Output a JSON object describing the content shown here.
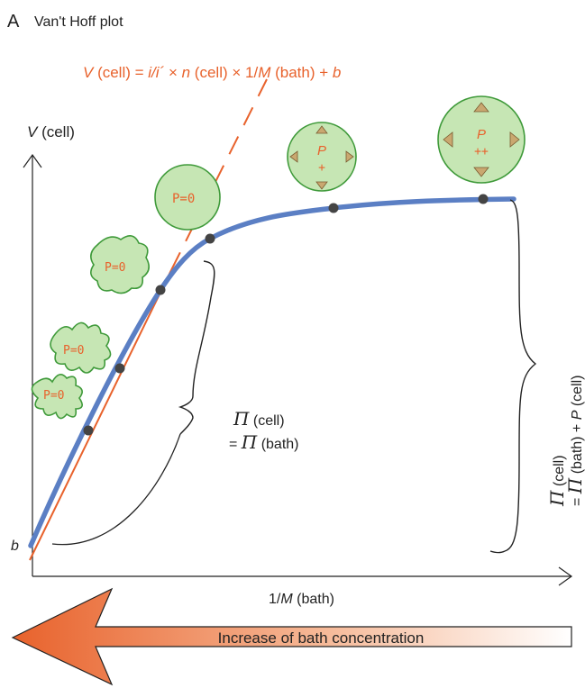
{
  "panel": {
    "letter": "A",
    "title": "Van't Hoff plot"
  },
  "equation": {
    "v": "V",
    "p1": " (cell) = ",
    "ratio": "i/i´",
    "p2": " × ",
    "n": "n",
    "p3": " (cell) × 1/",
    "m": "M",
    "p4": " (bath) + ",
    "b": "b"
  },
  "y_axis": {
    "v": "V",
    "rest": " (cell)"
  },
  "x_axis": {
    "prefix": "1/",
    "m": "M",
    "rest": " (bath)"
  },
  "intercept_label": "b",
  "annotation_left": {
    "pi1": "Π",
    "line1": " (cell)",
    "eq": "= ",
    "pi2": "Π",
    "line2": " (bath)"
  },
  "annotation_right": {
    "pi1": "Π",
    "line1": " (cell)",
    "eq": "= ",
    "pi2": "Π",
    "line2": " (bath) + ",
    "p": "P",
    "line3": " (cell)"
  },
  "cells": {
    "c1": "P=0",
    "c2": "P=0",
    "c3": "P=0",
    "c4": "P=0",
    "c5_p": "P",
    "c5_sign": "+",
    "c6_p": "P",
    "c6_sign": "++"
  },
  "arrow_label": "Increase of bath concentration",
  "colors": {
    "curve": "#5b7fc4",
    "fit_line": "#e8622c",
    "cell_fill": "#c6e6b4",
    "cell_stroke": "#3f9a3a",
    "arrow_fill": "#e8622c",
    "pressure_arrow": "#c9a870"
  }
}
